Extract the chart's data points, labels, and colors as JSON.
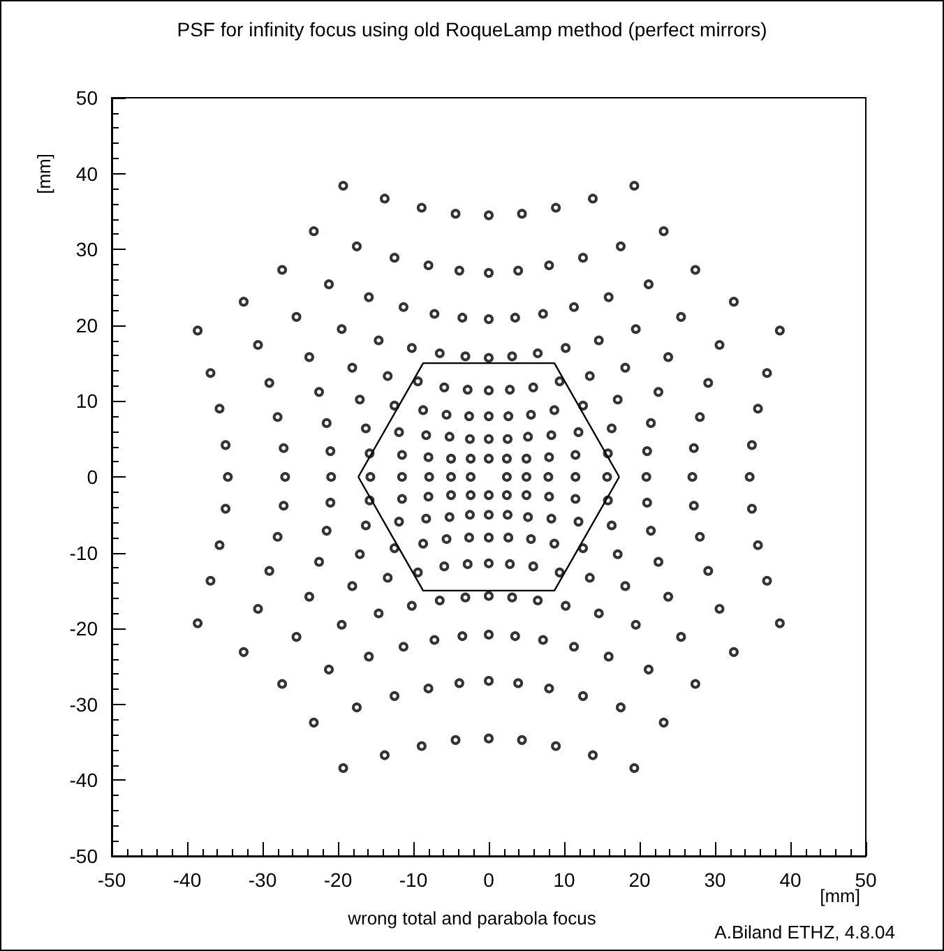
{
  "chart_data": {
    "type": "scatter",
    "title": "PSF for infinity focus using old RoqueLamp method (perfect mirrors)",
    "xlabel": "[mm]",
    "ylabel": "[mm]",
    "annotations": [
      "wrong total and parabola focus",
      "A.Biland ETHZ, 4.8.04"
    ],
    "xlim": [
      -50,
      50
    ],
    "xticks": [
      -50,
      -40,
      -30,
      -20,
      -10,
      0,
      10,
      20,
      30,
      40,
      50
    ],
    "ylim": [
      -50,
      50
    ],
    "yticks": [
      -50,
      -40,
      -30,
      -20,
      -10,
      0,
      10,
      20,
      30,
      40,
      50
    ],
    "marker": "circle",
    "series": [
      {
        "color": "#000000",
        "x": [
          19.3,
          13.8,
          8.9,
          4.4,
          23.2,
          17.5,
          12.5,
          8.0,
          3.9,
          27.4,
          21.2,
          15.9,
          11.3,
          7.2,
          3.5,
          32.5,
          25.5,
          19.5,
          14.6,
          10.2,
          6.5,
          3.1,
          38.6,
          30.6,
          23.8,
          18.1,
          13.4,
          9.4,
          5.9,
          2.8,
          36.9,
          29.1,
          22.5,
          17.1,
          12.5,
          8.7,
          5.6,
          2.6,
          35.7,
          28.0,
          21.5,
          16.3,
          11.9,
          8.3,
          5.2,
          2.5,
          34.9,
          27.2,
          21.0,
          15.8,
          11.5,
          8.0,
          5.0,
          2.4,
          -19.3,
          -13.8,
          -8.9,
          -4.4,
          -23.2,
          -17.5,
          -12.5,
          -8.0,
          -3.9,
          -27.4,
          -21.2,
          -15.9,
          -11.3,
          -7.2,
          -3.5,
          -32.5,
          -25.5,
          -19.5,
          -14.6,
          -10.2,
          -6.5,
          -3.1,
          -38.6,
          -30.6,
          -23.8,
          -18.1,
          -13.4,
          -9.4,
          -5.9,
          -2.8,
          -36.9,
          -29.1,
          -22.5,
          -17.1,
          -12.5,
          -8.7,
          -5.6,
          -2.6,
          -35.7,
          -28.0,
          -21.5,
          -16.3,
          -11.9,
          -8.3,
          -5.2,
          -2.5,
          -34.9,
          -27.2,
          -21.0,
          -15.8,
          -11.5,
          -8.0,
          -5.0,
          -2.4,
          -19.3,
          -13.8,
          -8.9,
          -4.4,
          -23.2,
          -17.5,
          -12.5,
          -8.0,
          -3.9,
          -27.4,
          -21.2,
          -15.9,
          -11.3,
          -7.2,
          -3.5,
          -32.5,
          -25.5,
          -19.5,
          -14.6,
          -10.2,
          -6.5,
          -3.1,
          -38.6,
          -30.6,
          -23.8,
          -18.1,
          -13.4,
          -9.4,
          -5.9,
          -2.8,
          -36.9,
          -29.1,
          -22.5,
          -17.1,
          -12.5,
          -8.7,
          -5.6,
          -2.6,
          -35.7,
          -28.0,
          -21.5,
          -16.3,
          -11.9,
          -8.3,
          -5.2,
          -2.5,
          -34.9,
          -27.2,
          -21.0,
          -15.8,
          -11.5,
          -8.0,
          -5.0,
          -2.4,
          19.3,
          13.8,
          8.9,
          4.4,
          23.2,
          17.5,
          12.5,
          8.0,
          3.9,
          27.4,
          21.2,
          15.9,
          11.3,
          7.2,
          3.5,
          32.5,
          25.5,
          19.5,
          14.6,
          10.2,
          6.5,
          3.1,
          38.6,
          30.6,
          23.8,
          18.1,
          13.4,
          9.4,
          5.9,
          2.8,
          36.9,
          29.1,
          22.5,
          17.1,
          12.5,
          8.7,
          5.6,
          2.6,
          35.7,
          28.0,
          21.5,
          16.3,
          11.9,
          8.3,
          5.2,
          2.5,
          34.9,
          27.2,
          21.0,
          15.8,
          11.5,
          8.0,
          5.0,
          2.4,
          0,
          0,
          0,
          0,
          0,
          0,
          0,
          0,
          0,
          0,
          0,
          0,
          0,
          0,
          0,
          0,
          2.4,
          5.0,
          7.9,
          11.5,
          15.7,
          20.9,
          27.0,
          34.6,
          -2.4,
          -5.0,
          -7.9,
          -11.5,
          -15.7,
          -20.9,
          -27.0,
          -34.6
        ],
        "values": [
          38.4,
          36.7,
          35.5,
          34.7,
          32.4,
          30.4,
          28.9,
          27.9,
          27.2,
          27.3,
          25.4,
          23.7,
          22.4,
          21.5,
          21.0,
          23.1,
          21.1,
          19.5,
          18.0,
          17.0,
          16.3,
          15.9,
          19.3,
          17.4,
          15.8,
          14.4,
          13.3,
          12.6,
          11.8,
          11.5,
          13.7,
          12.4,
          11.2,
          10.2,
          9.4,
          8.8,
          8.2,
          8.0,
          9.0,
          7.9,
          7.1,
          6.4,
          5.9,
          5.5,
          5.3,
          5.0,
          4.2,
          3.8,
          3.4,
          3.1,
          2.9,
          2.6,
          2.4,
          2.4,
          38.4,
          36.7,
          35.5,
          34.7,
          32.4,
          30.4,
          28.9,
          27.9,
          27.2,
          27.3,
          25.4,
          23.7,
          22.4,
          21.5,
          21.0,
          23.1,
          21.1,
          19.5,
          18.0,
          17.0,
          16.3,
          15.9,
          19.3,
          17.4,
          15.8,
          14.4,
          13.3,
          12.6,
          11.8,
          11.5,
          13.7,
          12.4,
          11.2,
          10.2,
          9.4,
          8.8,
          8.2,
          8.0,
          9.0,
          7.9,
          7.1,
          6.4,
          5.9,
          5.5,
          5.3,
          5.0,
          4.2,
          3.8,
          3.4,
          3.1,
          2.9,
          2.6,
          2.4,
          2.4,
          -38.4,
          -36.7,
          -35.5,
          -34.7,
          -32.4,
          -30.4,
          -28.9,
          -27.9,
          -27.2,
          -27.3,
          -25.4,
          -23.7,
          -22.4,
          -21.5,
          -21.0,
          -23.1,
          -21.1,
          -19.5,
          -18.0,
          -17.0,
          -16.3,
          -15.9,
          -19.3,
          -17.4,
          -15.8,
          -14.4,
          -13.3,
          -12.6,
          -11.8,
          -11.5,
          -13.7,
          -12.4,
          -11.2,
          -10.2,
          -9.4,
          -8.8,
          -8.2,
          -8.0,
          -9.0,
          -7.9,
          -7.1,
          -6.4,
          -5.9,
          -5.5,
          -5.3,
          -5.0,
          -4.2,
          -3.8,
          -3.4,
          -3.1,
          -2.9,
          -2.6,
          -2.4,
          -2.4,
          -38.4,
          -36.7,
          -35.5,
          -34.7,
          -32.4,
          -30.4,
          -28.9,
          -27.9,
          -27.2,
          -27.3,
          -25.4,
          -23.7,
          -22.4,
          -21.5,
          -21.0,
          -23.1,
          -21.1,
          -19.5,
          -18.0,
          -17.0,
          -16.3,
          -15.9,
          -19.3,
          -17.4,
          -15.8,
          -14.4,
          -13.3,
          -12.6,
          -11.8,
          -11.5,
          -13.7,
          -12.4,
          -11.2,
          -10.2,
          -9.4,
          -8.8,
          -8.2,
          -8.0,
          -9.0,
          -7.9,
          -7.1,
          -6.4,
          -5.9,
          -5.5,
          -5.3,
          -5.0,
          -4.2,
          -3.8,
          -3.4,
          -3.1,
          -2.9,
          -2.6,
          -2.4,
          -2.4,
          34.5,
          26.9,
          20.8,
          15.7,
          11.4,
          8.0,
          5.0,
          2.4,
          -34.5,
          -26.9,
          -20.8,
          -15.7,
          -11.4,
          -8.0,
          -5.0,
          -2.4,
          0,
          0,
          0,
          0,
          0,
          0,
          0,
          0,
          0,
          0,
          0,
          0,
          0,
          0,
          0,
          0
        ]
      },
      {
        "type": "line",
        "color": "#000000",
        "marker": "none",
        "line_style": "solid",
        "x": [
          -17.3,
          -8.7,
          8.7,
          17.3
        ],
        "values": [
          0,
          15,
          15,
          0
        ]
      },
      {
        "type": "line",
        "color": "#000000",
        "marker": "none",
        "line_style": "solid",
        "x": [
          -17.3,
          -8.7,
          8.7,
          17.3
        ],
        "values": [
          0,
          -15,
          -15,
          0
        ]
      }
    ]
  }
}
